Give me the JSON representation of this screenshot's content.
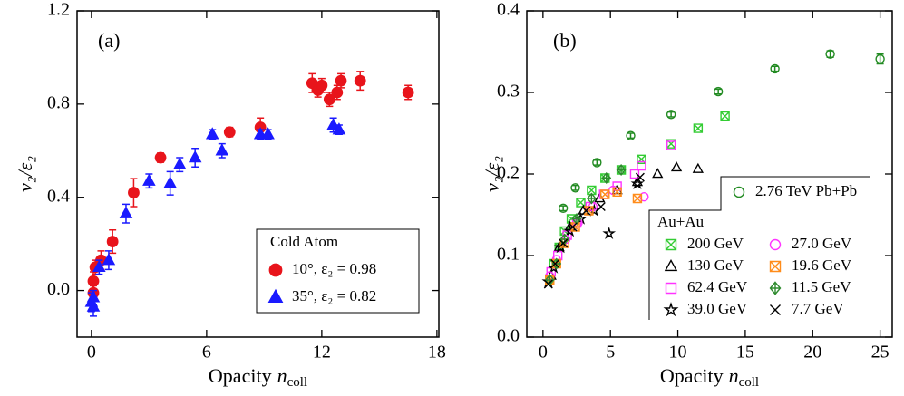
{
  "chart_data": [
    {
      "type": "scatter",
      "panel_label": "(a)",
      "ylabel": "v₂/ε₂",
      "xlabel": {
        "text": "Opacity",
        "symbol": "n",
        "subscript": "coll"
      },
      "xlim": [
        -0.75,
        18.1
      ],
      "xticks": [
        0,
        6,
        12,
        18
      ],
      "ylim": [
        -0.2,
        1.2
      ],
      "yticks": [
        {
          "value": 0,
          "label": "0.0"
        },
        {
          "value": 0.4,
          "label": "0.4"
        },
        {
          "value": 0.8,
          "label": "0.8"
        },
        {
          "value": 1.2,
          "label": "1.2"
        }
      ],
      "legend_title": "Cold Atom",
      "series": [
        {
          "name": "10°, ε₂ = 0.98",
          "color": "#e8141b",
          "marker": "circle",
          "x": [
            0.1,
            0.1,
            0.2,
            0.5,
            1.1,
            2.2,
            3.6,
            7.2,
            8.8,
            11.5,
            11.8,
            12.0,
            12.4,
            12.8,
            13.0,
            14.0,
            16.5
          ],
          "values": [
            0.04,
            -0.01,
            0.1,
            0.13,
            0.21,
            0.42,
            0.57,
            0.68,
            0.7,
            0.89,
            0.86,
            0.88,
            0.82,
            0.85,
            0.9,
            0.9,
            0.85
          ],
          "errors": [
            0.04,
            0.03,
            0.03,
            0.04,
            0.05,
            0.06,
            0.02,
            0.02,
            0.04,
            0.04,
            0.03,
            0.03,
            0.03,
            0.03,
            0.03,
            0.04,
            0.03
          ]
        },
        {
          "name": "35°, ε₂ = 0.82",
          "color": "#1a1aff",
          "marker": "triangle",
          "x": [
            0.0,
            0.1,
            0.1,
            0.4,
            0.9,
            1.8,
            3.0,
            4.1,
            4.6,
            5.4,
            6.3,
            6.8,
            8.8,
            9.2,
            12.6,
            12.9
          ],
          "values": [
            -0.05,
            -0.07,
            -0.03,
            0.1,
            0.13,
            0.33,
            0.47,
            0.46,
            0.54,
            0.57,
            0.67,
            0.6,
            0.67,
            0.67,
            0.71,
            0.69
          ],
          "errors": [
            0.04,
            0.04,
            0.03,
            0.03,
            0.04,
            0.04,
            0.03,
            0.05,
            0.03,
            0.04,
            0.02,
            0.03,
            0.02,
            0.02,
            0.03,
            0.02
          ]
        }
      ]
    },
    {
      "type": "scatter",
      "panel_label": "(b)",
      "ylabel": "v₂/ε₂",
      "xlabel": {
        "text": "Opacity",
        "symbol": "n",
        "subscript": "coll"
      },
      "xlim": [
        -1.2,
        25.9
      ],
      "xticks": [
        0,
        5,
        10,
        15,
        20,
        25
      ],
      "ylim": [
        0,
        0.4
      ],
      "yticks": [
        {
          "value": 0,
          "label": "0.0"
        },
        {
          "value": 0.1,
          "label": "0.1"
        },
        {
          "value": 0.2,
          "label": "0.2"
        },
        {
          "value": 0.3,
          "label": "0.3"
        },
        {
          "value": 0.4,
          "label": "0.4"
        }
      ],
      "legend_group_label": "Au+Au",
      "series": [
        {
          "name": "2.76 TeV Pb+Pb",
          "color": "#228b22",
          "marker": "circle-open",
          "x": [
            1.5,
            2.4,
            4.0,
            6.5,
            9.5,
            13.0,
            17.2,
            21.3,
            25.0
          ],
          "values": [
            0.158,
            0.183,
            0.214,
            0.247,
            0.273,
            0.301,
            0.329,
            0.347,
            0.341
          ],
          "errors": [
            0.003,
            0.003,
            0.003,
            0.003,
            0.003,
            0.003,
            0.003,
            0.004,
            0.006
          ]
        },
        {
          "name": "200 GeV",
          "color": "#33cc33",
          "marker": "boxx",
          "x": [
            0.5,
            0.8,
            1.2,
            1.6,
            2.1,
            2.8,
            3.6,
            4.6,
            5.8,
            7.3,
            9.5,
            11.5,
            13.5
          ],
          "values": [
            0.07,
            0.09,
            0.11,
            0.13,
            0.145,
            0.165,
            0.18,
            0.195,
            0.205,
            0.218,
            0.237,
            0.256,
            0.271
          ]
        },
        {
          "name": "130 GeV",
          "color": "#000000",
          "marker": "triangle-open",
          "x": [
            0.6,
            1.2,
            2.0,
            3.0,
            4.2,
            5.5,
            7.0,
            8.5,
            9.9,
            11.5
          ],
          "values": [
            0.075,
            0.11,
            0.135,
            0.155,
            0.17,
            0.18,
            0.19,
            0.2,
            0.208,
            0.206
          ]
        },
        {
          "name": "62.4 GeV",
          "color": "#ff33ff",
          "marker": "square",
          "x": [
            0.6,
            1.1,
            1.8,
            2.5,
            3.5,
            4.5,
            5.5,
            6.8,
            7.3,
            9.5
          ],
          "values": [
            0.08,
            0.1,
            0.125,
            0.14,
            0.16,
            0.175,
            0.185,
            0.2,
            0.21,
            0.235
          ]
        },
        {
          "name": "39.0 GeV",
          "color": "#000000",
          "marker": "star",
          "x": [
            0.4,
            0.8,
            1.3,
            2.0,
            2.8,
            3.8,
            4.9,
            7.0
          ],
          "values": [
            0.068,
            0.085,
            0.11,
            0.13,
            0.145,
            0.155,
            0.127,
            0.188
          ]
        },
        {
          "name": "27.0 GeV",
          "color": "#ff33ff",
          "marker": "circle-open",
          "x": [
            0.5,
            1.0,
            1.7,
            2.6,
            3.7,
            5.2,
            7.5
          ],
          "values": [
            0.075,
            0.095,
            0.12,
            0.14,
            0.16,
            0.18,
            0.172
          ]
        },
        {
          "name": "19.6 GeV",
          "color": "#ff8c1a",
          "marker": "boxx",
          "x": [
            0.5,
            1.0,
            1.6,
            2.4,
            3.4,
            4.6,
            5.5,
            7.0
          ],
          "values": [
            0.07,
            0.09,
            0.115,
            0.135,
            0.155,
            0.175,
            0.178,
            0.17
          ]
        },
        {
          "name": "11.5 GeV",
          "color": "#2e8b2e",
          "marker": "diamond",
          "x": [
            0.5,
            1.0,
            1.6,
            2.5,
            3.6,
            4.7,
            5.8
          ],
          "values": [
            0.07,
            0.09,
            0.12,
            0.145,
            0.17,
            0.195,
            0.205
          ]
        },
        {
          "name": "7.7 GeV",
          "color": "#000000",
          "marker": "x",
          "x": [
            0.4,
            0.9,
            1.5,
            2.2,
            3.2,
            4.3,
            7.2
          ],
          "values": [
            0.065,
            0.09,
            0.115,
            0.135,
            0.155,
            0.16,
            0.196
          ]
        }
      ]
    }
  ]
}
